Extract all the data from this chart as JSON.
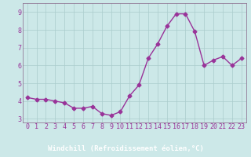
{
  "x": [
    0,
    1,
    2,
    3,
    4,
    5,
    6,
    7,
    8,
    9,
    10,
    11,
    12,
    13,
    14,
    15,
    16,
    17,
    18,
    19,
    20,
    21,
    22,
    23
  ],
  "y": [
    4.2,
    4.1,
    4.1,
    4.0,
    3.9,
    3.6,
    3.6,
    3.7,
    3.3,
    3.2,
    3.4,
    4.3,
    4.9,
    6.4,
    7.2,
    8.2,
    8.9,
    8.9,
    7.9,
    6.0,
    6.3,
    6.5,
    6.0,
    6.4
  ],
  "line_color": "#993399",
  "marker": "D",
  "marker_size": 2.5,
  "bg_color": "#cce8e8",
  "plot_bg_color": "#cce8e8",
  "grid_color": "#aacccc",
  "xlabel": "Windchill (Refroidissement éolien,°C)",
  "xlabel_bg": "#800080",
  "xlabel_fg": "#ffffff",
  "xlim": [
    -0.5,
    23.5
  ],
  "ylim": [
    2.8,
    9.5
  ],
  "yticks": [
    3,
    4,
    5,
    6,
    7,
    8,
    9
  ],
  "xticks": [
    0,
    1,
    2,
    3,
    4,
    5,
    6,
    7,
    8,
    9,
    10,
    11,
    12,
    13,
    14,
    15,
    16,
    17,
    18,
    19,
    20,
    21,
    22,
    23
  ],
  "tick_fontsize": 6,
  "xlabel_fontsize": 6.5,
  "line_width": 1.0,
  "spine_color": "#886688"
}
